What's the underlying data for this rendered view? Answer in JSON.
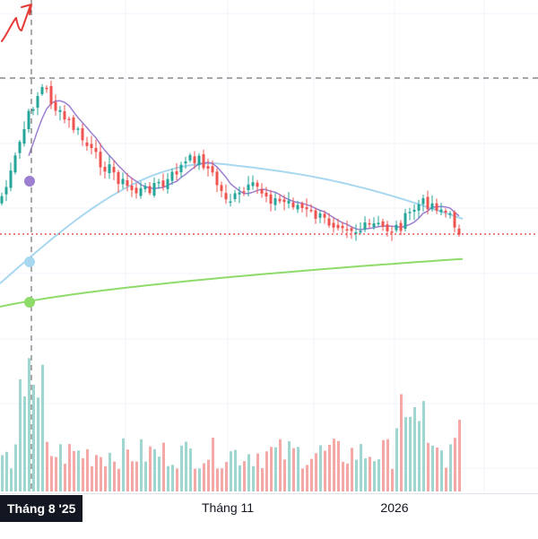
{
  "chart_data": {
    "type": "candlestick",
    "symbol": "",
    "grid": true,
    "x_ticks": [
      {
        "label": "Tháng 8 '25",
        "highlighted": true
      },
      {
        "label": "Tháng 11",
        "highlighted": false
      },
      {
        "label": "2026",
        "highlighted": false
      }
    ],
    "crosshair": {
      "x_label": "Tháng 8 '25"
    },
    "colors": {
      "up": "#26a69a",
      "down": "#ef5350",
      "ma_short": "#9c7fd1",
      "ma_mid": "#a8d8f0",
      "ma_long": "#8edb6a",
      "price_line": "#e53935",
      "annotation": "#e53935"
    },
    "relative_price_path": [
      0.3,
      0.42,
      0.62,
      0.78,
      0.92,
      1.0,
      0.88,
      0.8,
      0.76,
      0.7,
      0.62,
      0.55,
      0.5,
      0.46,
      0.4,
      0.35,
      0.33,
      0.34,
      0.38,
      0.36,
      0.42,
      0.48,
      0.52,
      0.55,
      0.5,
      0.42,
      0.32,
      0.28,
      0.3,
      0.34,
      0.36,
      0.32,
      0.28,
      0.26,
      0.27,
      0.24,
      0.2,
      0.18,
      0.15,
      0.13,
      0.14,
      0.11,
      0.08,
      0.1,
      0.12,
      0.1,
      0.09,
      0.11,
      0.18,
      0.24,
      0.26,
      0.25,
      0.22,
      0.16,
      0.09
    ],
    "moving_average_periods": {
      "short": 10,
      "mid": 50,
      "long": 200
    }
  }
}
